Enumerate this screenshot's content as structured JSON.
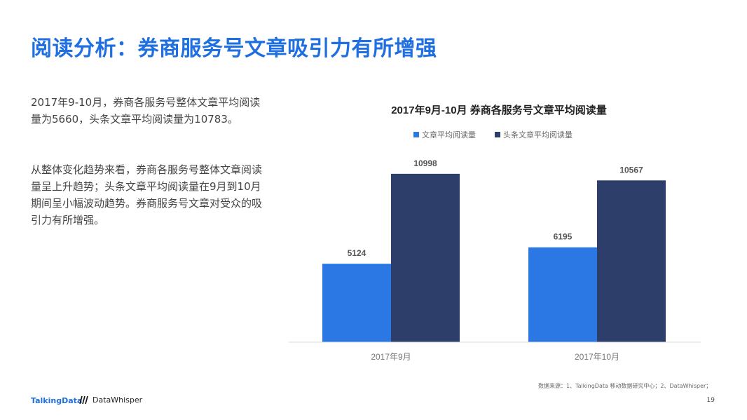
{
  "page": {
    "title": "阅读分析：券商服务号文章吸引力有所增强",
    "para1": "2017年9-10月，券商各服务号整体文章平均阅读量为5660，头条文章平均阅读量为10783。",
    "para2": "从整体变化趋势来看，券商各服务号整体文章阅读量呈上升趋势；头条文章平均阅读量在9月到10月期间呈小幅波动趋势。券商服务号文章对受众的吸引力有所增强。",
    "logo1": "TalkingData",
    "logo2": "DataWhisper",
    "source": "数据来源：1、TalkingData 移动数据研究中心；2、DataWhisper；",
    "page_number": "19"
  },
  "chart_data": {
    "type": "bar",
    "title": "2017年9月-10月 券商各服务号文章平均阅读量",
    "categories": [
      "2017年9月",
      "2017年10月"
    ],
    "series": [
      {
        "name": "文章平均阅读量",
        "values": [
          5124,
          6195
        ],
        "color": "#2b78e4"
      },
      {
        "name": "头条文章平均阅读量",
        "values": [
          10998,
          10567
        ],
        "color": "#2e3e6b"
      }
    ],
    "ylim": [
      0,
      12000
    ],
    "grid": false,
    "legend": "top-center",
    "xlabel": "",
    "ylabel": ""
  }
}
